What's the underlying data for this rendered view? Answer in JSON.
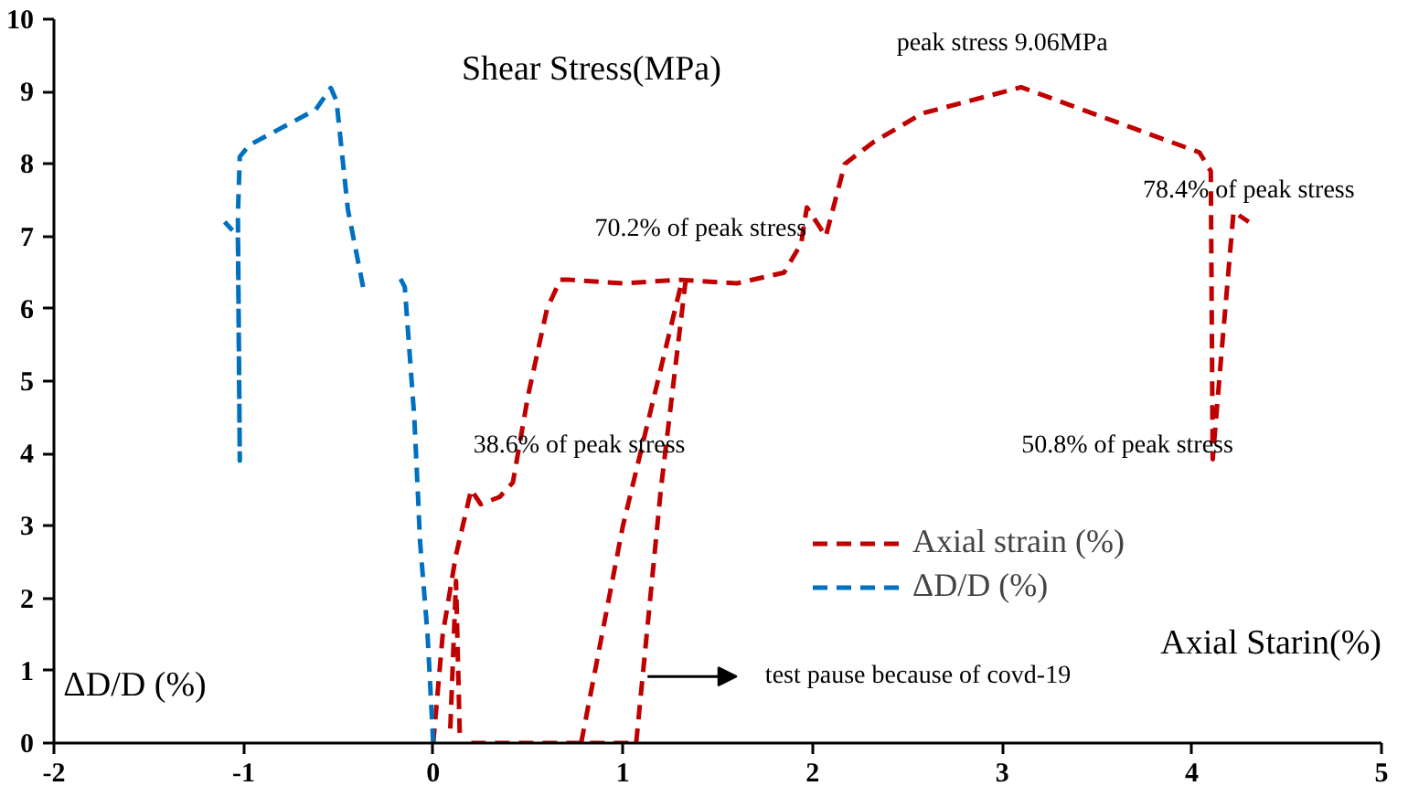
{
  "chart_data": {
    "type": "line",
    "xlabel": "Axial Starin(%)",
    "ylabel": "Shear Stress(MPa)",
    "xlim": [
      -2,
      5
    ],
    "ylim": [
      0,
      10
    ],
    "xticks": [
      -2,
      -1,
      0,
      1,
      2,
      3,
      4,
      5
    ],
    "yticks": [
      0,
      1,
      2,
      3,
      4,
      5,
      6,
      7,
      8,
      9,
      10
    ],
    "grid": false,
    "legend": "bottom right",
    "line_style": "dashed",
    "marker": "none",
    "series": [
      {
        "name": "Axial strain (%)",
        "color": "#c00000",
        "x": [
          0,
          0.05,
          0.12,
          0.2,
          0.25,
          0.35,
          0.42,
          0.5,
          0.6,
          0.67,
          0.72,
          1.0,
          1.3,
          1.6,
          1.85,
          1.94,
          1.97,
          2.07,
          2.17,
          2.32,
          2.58,
          3.1,
          4.04,
          4.1,
          4.11,
          4.16,
          4.22,
          4.3,
          null,
          0.09,
          0.12,
          0.14,
          null,
          0.2,
          1.07,
          null,
          0.78,
          1.0,
          1.31,
          null,
          1.07,
          1.2,
          1.33
        ],
        "values": [
          0,
          1.5,
          2.6,
          3.5,
          3.3,
          3.4,
          3.6,
          4.8,
          6.0,
          6.4,
          6.4,
          6.35,
          6.4,
          6.35,
          6.5,
          6.9,
          7.4,
          7.0,
          8.0,
          8.3,
          8.7,
          9.06,
          8.16,
          7.9,
          3.92,
          5.5,
          7.34,
          7.2,
          null,
          0.2,
          2.24,
          0.1,
          null,
          0,
          0,
          null,
          0,
          3.0,
          6.37,
          null,
          0,
          3.5,
          6.37
        ]
      },
      {
        "name": "ΔD/D (%)",
        "color": "#0070c0",
        "x": [
          0,
          -0.03,
          -0.07,
          -0.08,
          -0.1,
          -0.15,
          -0.19,
          null,
          -0.37,
          -0.45,
          -0.51,
          -0.54,
          -0.62,
          -0.97,
          -1.02,
          -1.03,
          -1.02,
          -1.03,
          -1.1
        ],
        "values": [
          0,
          1.5,
          2.8,
          3.4,
          4.5,
          6.3,
          6.5,
          null,
          6.3,
          7.37,
          8.87,
          9.05,
          8.75,
          8.26,
          8.1,
          7.3,
          3.9,
          7.0,
          7.2
        ]
      }
    ],
    "annotations": [
      "38.6% of peak stress",
      "70.2% of peak stress",
      "peak stress 9.06MPa",
      "78.4% of peak stress",
      "50.8% of peak stress",
      "test pause because of covd-19",
      "ΔD/D (%)"
    ]
  }
}
